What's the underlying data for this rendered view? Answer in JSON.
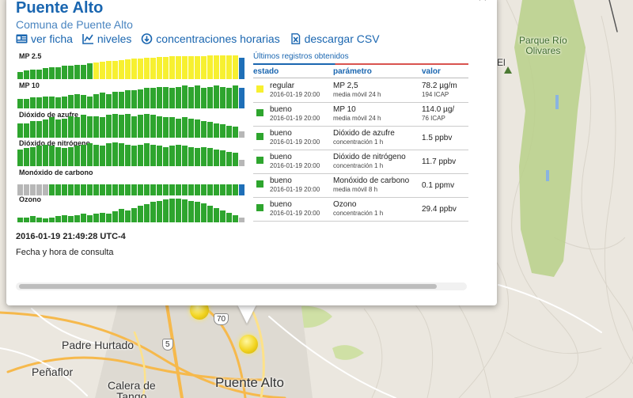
{
  "map": {
    "labels": {
      "padre_hurtado": "Padre Hurtado",
      "penaflor": "Peñaflor",
      "calera_de_tango": "Calera de\nTango",
      "puente_alto": "Puente Alto",
      "parque_rio_olivares": "Parque Río\nOlivares",
      "el": "El"
    },
    "shields": {
      "r70": "70",
      "r5": "5"
    }
  },
  "popup": {
    "close_label": "×",
    "title": "Puente Alto",
    "subtitle": "Comuna de Puente Alto",
    "actions": {
      "ficha": "ver ficha",
      "niveles": "niveles",
      "horarias": "concentraciones horarias",
      "csv": "descargar CSV"
    },
    "colors": {
      "bueno": "#2ea52e",
      "regular": "#f7f030",
      "sin_dato": "#b7b7b7",
      "ultimo": "#1e6fb8"
    },
    "series": [
      {
        "label": "MP 2.5",
        "levels": [
          "bueno",
          "bueno",
          "bueno",
          "bueno",
          "bueno",
          "bueno",
          "bueno",
          "bueno",
          "bueno",
          "bueno",
          "bueno",
          "bueno",
          "regular",
          "regular",
          "regular",
          "regular",
          "regular",
          "regular",
          "regular",
          "regular",
          "regular",
          "regular",
          "regular",
          "regular",
          "regular",
          "regular",
          "regular",
          "regular",
          "regular",
          "regular",
          "regular",
          "regular",
          "regular",
          "regular",
          "regular",
          "ultimo"
        ],
        "heights": [
          0.3,
          0.35,
          0.4,
          0.4,
          0.45,
          0.5,
          0.5,
          0.55,
          0.55,
          0.6,
          0.6,
          0.65,
          0.7,
          0.72,
          0.75,
          0.78,
          0.8,
          0.82,
          0.85,
          0.87,
          0.9,
          0.9,
          0.92,
          0.93,
          0.95,
          0.95,
          0.96,
          0.97,
          0.98,
          0.98,
          0.99,
          1.0,
          1.0,
          1.0,
          1.0,
          0.9
        ]
      },
      {
        "label": "MP 10",
        "levels": [
          "bueno",
          "bueno",
          "bueno",
          "bueno",
          "bueno",
          "bueno",
          "bueno",
          "bueno",
          "bueno",
          "bueno",
          "bueno",
          "bueno",
          "bueno",
          "bueno",
          "bueno",
          "bueno",
          "bueno",
          "bueno",
          "bueno",
          "bueno",
          "bueno",
          "bueno",
          "bueno",
          "bueno",
          "bueno",
          "bueno",
          "bueno",
          "bueno",
          "bueno",
          "bueno",
          "bueno",
          "bueno",
          "bueno",
          "bueno",
          "bueno",
          "ultimo"
        ],
        "heights": [
          0.4,
          0.4,
          0.45,
          0.45,
          0.5,
          0.5,
          0.45,
          0.5,
          0.55,
          0.6,
          0.55,
          0.5,
          0.6,
          0.65,
          0.6,
          0.7,
          0.7,
          0.75,
          0.75,
          0.8,
          0.85,
          0.85,
          0.9,
          0.9,
          0.85,
          0.9,
          0.95,
          0.9,
          0.95,
          0.85,
          0.9,
          0.95,
          0.9,
          0.85,
          0.95,
          0.85
        ]
      },
      {
        "label": "Dióxido de azufre",
        "levels": [
          "bueno",
          "bueno",
          "bueno",
          "bueno",
          "bueno",
          "bueno",
          "bueno",
          "bueno",
          "bueno",
          "bueno",
          "bueno",
          "bueno",
          "bueno",
          "bueno",
          "bueno",
          "bueno",
          "bueno",
          "bueno",
          "bueno",
          "bueno",
          "bueno",
          "bueno",
          "bueno",
          "bueno",
          "bueno",
          "bueno",
          "bueno",
          "bueno",
          "bueno",
          "bueno",
          "bueno",
          "bueno",
          "bueno",
          "bueno",
          "bueno",
          "sin_dato"
        ],
        "heights": [
          0.6,
          0.6,
          0.7,
          0.7,
          0.75,
          0.85,
          0.75,
          0.8,
          0.9,
          0.85,
          0.95,
          0.9,
          0.9,
          0.85,
          0.95,
          1.0,
          0.95,
          1.0,
          0.9,
          0.95,
          1.0,
          0.95,
          0.9,
          0.85,
          0.85,
          0.8,
          0.85,
          0.8,
          0.75,
          0.7,
          0.65,
          0.6,
          0.55,
          0.5,
          0.45,
          0.25
        ]
      },
      {
        "label": "Dióxido de nitrógeno",
        "levels": [
          "bueno",
          "bueno",
          "bueno",
          "bueno",
          "bueno",
          "bueno",
          "bueno",
          "bueno",
          "bueno",
          "bueno",
          "bueno",
          "bueno",
          "bueno",
          "bueno",
          "bueno",
          "bueno",
          "bueno",
          "bueno",
          "bueno",
          "bueno",
          "bueno",
          "bueno",
          "bueno",
          "bueno",
          "bueno",
          "bueno",
          "bueno",
          "bueno",
          "bueno",
          "bueno",
          "bueno",
          "bueno",
          "bueno",
          "bueno",
          "bueno",
          "sin_dato"
        ],
        "heights": [
          0.7,
          0.75,
          0.8,
          0.85,
          0.9,
          0.85,
          0.8,
          0.75,
          0.8,
          0.85,
          0.9,
          0.95,
          0.9,
          0.85,
          0.95,
          1.0,
          0.95,
          0.9,
          0.85,
          0.9,
          0.95,
          0.9,
          0.85,
          0.8,
          0.85,
          0.9,
          0.85,
          0.8,
          0.75,
          0.8,
          0.75,
          0.7,
          0.65,
          0.6,
          0.55,
          0.25
        ]
      },
      {
        "label": "Monóxido de carbono",
        "levels": [
          "sin_dato",
          "sin_dato",
          "sin_dato",
          "sin_dato",
          "sin_dato",
          "bueno",
          "bueno",
          "bueno",
          "bueno",
          "bueno",
          "bueno",
          "bueno",
          "bueno",
          "bueno",
          "bueno",
          "bueno",
          "bueno",
          "bueno",
          "bueno",
          "bueno",
          "bueno",
          "bueno",
          "bueno",
          "bueno",
          "bueno",
          "bueno",
          "bueno",
          "bueno",
          "bueno",
          "bueno",
          "bueno",
          "bueno",
          "bueno",
          "bueno",
          "bueno",
          "ultimo"
        ],
        "heights": [
          0.45,
          0.45,
          0.45,
          0.45,
          0.45,
          0.45,
          0.45,
          0.45,
          0.45,
          0.45,
          0.45,
          0.45,
          0.45,
          0.45,
          0.45,
          0.45,
          0.45,
          0.45,
          0.45,
          0.45,
          0.45,
          0.45,
          0.45,
          0.45,
          0.45,
          0.45,
          0.45,
          0.45,
          0.45,
          0.45,
          0.45,
          0.45,
          0.45,
          0.45,
          0.45,
          0.45
        ]
      },
      {
        "label": "Ozono",
        "levels": [
          "bueno",
          "bueno",
          "bueno",
          "bueno",
          "bueno",
          "bueno",
          "bueno",
          "bueno",
          "bueno",
          "bueno",
          "bueno",
          "bueno",
          "bueno",
          "bueno",
          "bueno",
          "bueno",
          "bueno",
          "bueno",
          "bueno",
          "bueno",
          "bueno",
          "bueno",
          "bueno",
          "bueno",
          "bueno",
          "bueno",
          "bueno",
          "bueno",
          "bueno",
          "bueno",
          "bueno",
          "bueno",
          "bueno",
          "bueno",
          "bueno",
          "sin_dato"
        ],
        "heights": [
          0.2,
          0.2,
          0.25,
          0.2,
          0.15,
          0.2,
          0.25,
          0.3,
          0.25,
          0.3,
          0.35,
          0.3,
          0.35,
          0.4,
          0.35,
          0.45,
          0.55,
          0.5,
          0.6,
          0.7,
          0.75,
          0.85,
          0.9,
          0.95,
          1.0,
          1.0,
          0.95,
          0.9,
          0.85,
          0.8,
          0.7,
          0.6,
          0.5,
          0.4,
          0.3,
          0.2
        ]
      }
    ],
    "table": {
      "title": "Últimos registros obtenidos",
      "headers": {
        "estado": "estado",
        "parametro": "parámetro",
        "valor": "valor"
      },
      "rows": [
        {
          "estado": "regular",
          "level": "regular",
          "fecha": "2016-01-19 20:00",
          "parametro": "MP 2,5",
          "detalle": "media móvil 24 h",
          "valor": "78.2 µg/m",
          "sub": "194 ICAP"
        },
        {
          "estado": "bueno",
          "level": "bueno",
          "fecha": "2016-01-19 20:00",
          "parametro": "MP 10",
          "detalle": "media móvil 24 h",
          "valor": "114.0 µg/",
          "sub": "76 ICAP"
        },
        {
          "estado": "bueno",
          "level": "bueno",
          "fecha": "2016-01-19 20:00",
          "parametro": "Dióxido de azufre",
          "detalle": "concentración 1 h",
          "valor": "1.5 ppbv",
          "sub": ""
        },
        {
          "estado": "bueno",
          "level": "bueno",
          "fecha": "2016-01-19 20:00",
          "parametro": "Dióxido de nitrógeno",
          "detalle": "concentración 1 h",
          "valor": "11.7 ppbv",
          "sub": ""
        },
        {
          "estado": "bueno",
          "level": "bueno",
          "fecha": "2016-01-19 20:00",
          "parametro": "Monóxido de carbono",
          "detalle": "media móvil 8 h",
          "valor": "0.1 ppmv",
          "sub": ""
        },
        {
          "estado": "bueno",
          "level": "bueno",
          "fecha": "2016-01-19 20:00",
          "parametro": "Ozono",
          "detalle": "concentración 1 h",
          "valor": "29.4 ppbv",
          "sub": ""
        }
      ]
    },
    "timestamp": "2016-01-19 21:49:28 UTC-4",
    "timestamp_caption": "Fecha y hora de consulta"
  }
}
